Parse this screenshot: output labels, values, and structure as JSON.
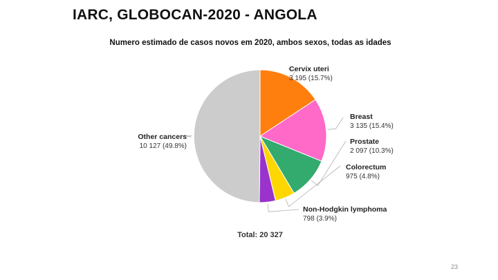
{
  "slide": {
    "title": "IARC, GLOBOCAN-2020 - ANGOLA",
    "page_number": "23"
  },
  "chart_data": {
    "type": "pie",
    "title": "Numero estimado de casos novos em 2020, ambos sexos, todas as idades",
    "total_label": "Total: 20 327",
    "total": 20327,
    "slices": [
      {
        "name": "Cervix uteri",
        "value": 3195,
        "value_label": "3 195 (15.7%)",
        "color": "#FF7F0E"
      },
      {
        "name": "Breast",
        "value": 3135,
        "value_label": "3 135 (15.4%)",
        "color": "#FF69C8"
      },
      {
        "name": "Prostate",
        "value": 2097,
        "value_label": "2 097 (10.3%)",
        "color": "#33AA6E"
      },
      {
        "name": "Colorectum",
        "value": 975,
        "value_label": "975 (4.8%)",
        "color": "#FFD700"
      },
      {
        "name": "Non-Hodgkin lymphoma",
        "value": 798,
        "value_label": "798 (3.9%)",
        "color": "#9933CC"
      },
      {
        "name": "Other cancers",
        "value": 10127,
        "value_label": "10 127 (49.8%)",
        "color": "#CCCCCC"
      }
    ]
  }
}
